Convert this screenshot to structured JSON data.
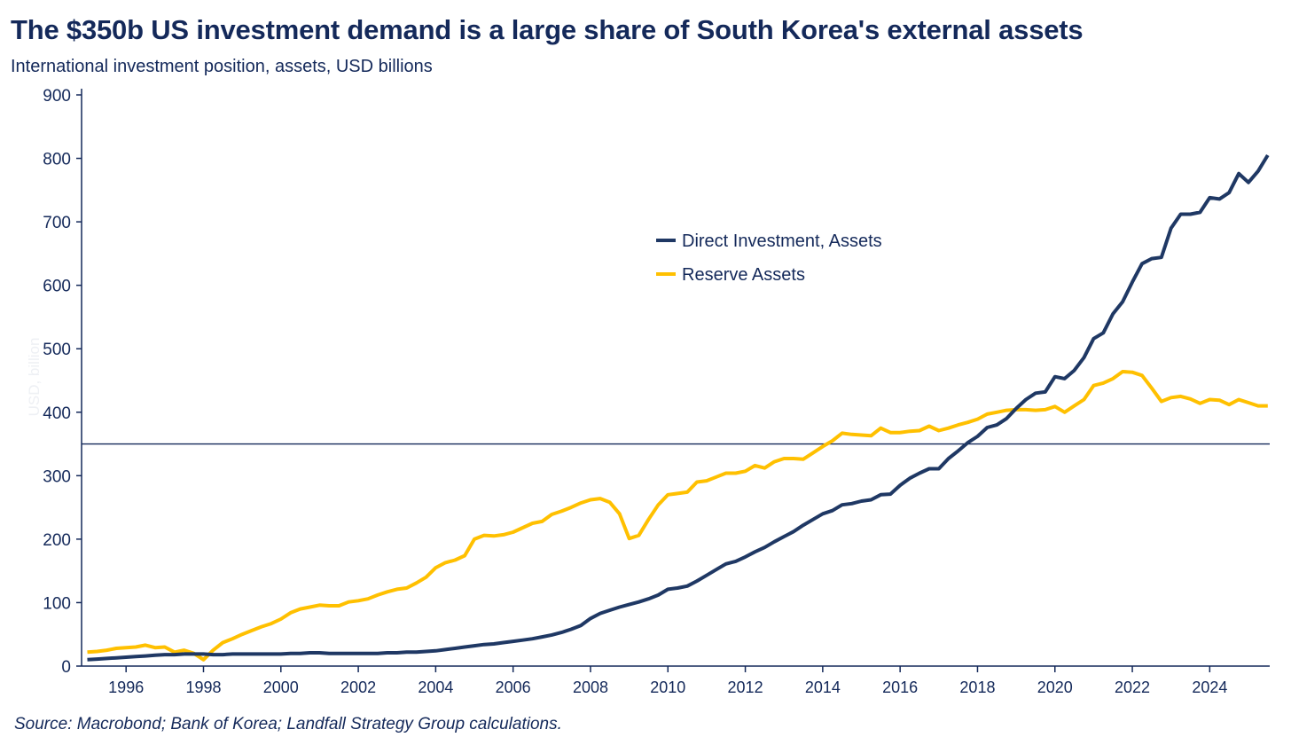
{
  "chart_data": {
    "type": "line",
    "title": "The $350b US investment demand is a large share of South Korea's external assets",
    "subtitle": "International investment position, assets, USD billions",
    "ylabel": "USD, billion",
    "xlabel": "",
    "source": "Source: Macrobond; Bank of Korea; Landfall Strategy Group calculations.",
    "ylim": [
      0,
      900
    ],
    "xlim": [
      1994.85,
      2025.55
    ],
    "yticks": [
      0,
      100,
      200,
      300,
      400,
      500,
      600,
      700,
      800,
      900
    ],
    "xticks": [
      1996,
      1998,
      2000,
      2002,
      2004,
      2006,
      2008,
      2010,
      2012,
      2014,
      2016,
      2018,
      2020,
      2022,
      2024
    ],
    "reference_line": 350,
    "x_start": 1995.0,
    "x_step": 0.25,
    "legend_position": "center",
    "series": [
      {
        "name": "Direct Investment, Assets",
        "color": "#1f3864",
        "values": [
          10,
          11,
          12,
          13,
          14,
          15,
          16,
          17,
          18,
          18,
          19,
          19,
          19,
          18,
          18,
          19,
          19,
          19,
          19,
          19,
          19,
          20,
          20,
          21,
          21,
          20,
          20,
          20,
          20,
          20,
          20,
          21,
          21,
          22,
          22,
          23,
          24,
          26,
          28,
          30,
          32,
          34,
          35,
          37,
          39,
          41,
          43,
          46,
          49,
          53,
          58,
          64,
          75,
          83,
          88,
          93,
          97,
          101,
          106,
          112,
          121,
          123,
          126,
          134,
          143,
          152,
          161,
          165,
          172,
          180,
          187,
          196,
          204,
          212,
          222,
          231,
          240,
          245,
          254,
          256,
          260,
          262,
          270,
          271,
          285,
          296,
          304,
          311,
          311,
          327,
          339,
          352,
          362,
          376,
          380,
          390,
          406,
          420,
          430,
          432,
          456,
          453,
          466,
          486,
          516,
          525,
          555,
          574,
          605,
          634,
          642,
          644,
          690,
          712,
          712,
          715,
          738,
          736,
          746,
          776,
          762,
          780,
          805
        ]
      },
      {
        "name": "Reserve Assets",
        "color": "#ffc000",
        "values": [
          22,
          23,
          25,
          28,
          29,
          30,
          33,
          29,
          30,
          22,
          25,
          20,
          10,
          25,
          37,
          43,
          50,
          56,
          62,
          67,
          74,
          84,
          90,
          93,
          96,
          95,
          95,
          101,
          103,
          106,
          112,
          117,
          121,
          123,
          131,
          140,
          155,
          163,
          167,
          174,
          200,
          206,
          205,
          207,
          211,
          218,
          225,
          228,
          239,
          244,
          250,
          257,
          262,
          264,
          258,
          240,
          201,
          206,
          231,
          254,
          270,
          272,
          274,
          290,
          292,
          298,
          304,
          304,
          307,
          316,
          312,
          322,
          327,
          327,
          326,
          336,
          346,
          355,
          367,
          365,
          364,
          363,
          375,
          368,
          368,
          370,
          371,
          378,
          371,
          375,
          380,
          384,
          389,
          397,
          400,
          403,
          404,
          404,
          403,
          404,
          409,
          400,
          410,
          420,
          442,
          446,
          453,
          464,
          463,
          458,
          438,
          417,
          423,
          425,
          421,
          414,
          420,
          419,
          412,
          420,
          415,
          410,
          410
        ]
      }
    ]
  }
}
